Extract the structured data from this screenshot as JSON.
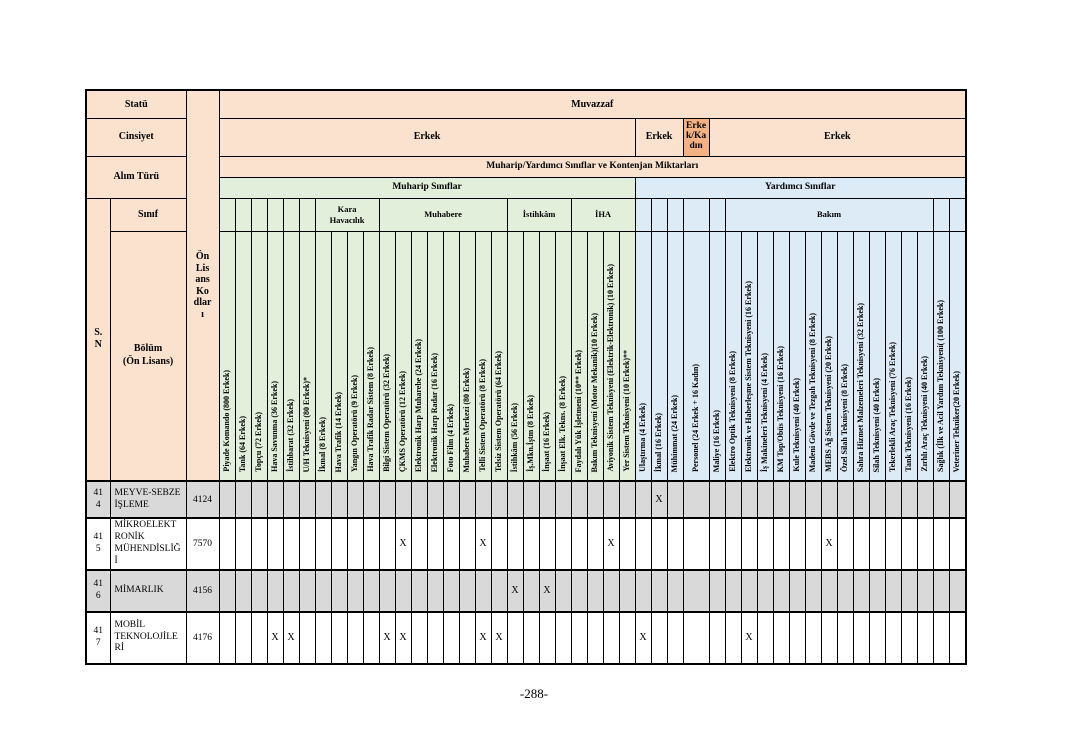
{
  "page": {
    "number_label": "-288-"
  },
  "table": {
    "colors": {
      "header_peach": "#fbe2ce",
      "header_dark_orange": "#f4b183",
      "muharip_green": "#e2efda",
      "yardimci_blue": "#ddebf7",
      "shaded_row_gray": "#d9d9d9"
    },
    "x_mark": "X",
    "left_headers": {
      "statu": "Statü",
      "cinsiyet": "Cinsiyet",
      "alim_turu": "Alım Türü",
      "sinif": "Sınıf",
      "sn": "S. N",
      "bolum": "Bölüm\n(Ön Lisans)",
      "on_lisans": "Ön Lisans Kodları"
    },
    "top": {
      "muvazzaf": "Muvazzaf",
      "cinsiyet_cells": [
        {
          "label": "Erkek",
          "span": 26
        },
        {
          "label": "Erkek",
          "span": 3
        },
        {
          "label": "Erkek/Kadın",
          "span": 1,
          "variant": "dark"
        },
        {
          "label": "Erkek",
          "span": 16
        }
      ],
      "kontenjan": "Muharip/Yardımcı Sınıflar ve Kontenjan Miktarları",
      "muharip": "Muharip Sınıflar",
      "yardimci": "Yardımcı Sınıflar"
    },
    "groups": [
      {
        "label": "",
        "span": 6,
        "section": "muharip"
      },
      {
        "label": "Kara\nHavacılık",
        "span": 4,
        "section": "muharip"
      },
      {
        "label": "Muhabere",
        "span": 8,
        "section": "muharip"
      },
      {
        "label": "İstihkâm",
        "span": 4,
        "section": "muharip"
      },
      {
        "label": "İHA",
        "span": 4,
        "section": "muharip"
      },
      {
        "label": "",
        "span": 5,
        "section": "yardimci"
      },
      {
        "label": "Bakım",
        "span": 13,
        "section": "yardimci"
      },
      {
        "label": "",
        "span": 2,
        "section": "yardimci"
      }
    ],
    "columns": [
      {
        "label": "Piyade Komando (800 Erkek)",
        "section": "muharip"
      },
      {
        "label": "Tank (64 Erkek)",
        "section": "muharip"
      },
      {
        "label": "Topçu (72 Erkek)",
        "section": "muharip"
      },
      {
        "label": "Hava Savunma (36 Erkek)",
        "section": "muharip"
      },
      {
        "label": "İstihbarat (32 Erkek)",
        "section": "muharip"
      },
      {
        "label": "U/H Teknisyeni (80 Erkek)*",
        "section": "muharip"
      },
      {
        "label": "İkmal (8 Erkek)",
        "section": "muharip"
      },
      {
        "label": "Hava Trafik (14 Erkek)",
        "section": "muharip"
      },
      {
        "label": "Yangın Operatörü (9 Erkek)",
        "section": "muharip"
      },
      {
        "label": "Hava Trafik Radar Sistem (8 Erkek)",
        "section": "muharip"
      },
      {
        "label": "Bilgi Sistem Operatörü (32 Erkek)",
        "section": "muharip"
      },
      {
        "label": "ÇKMS Operatörü (12 Erkek)",
        "section": "muharip"
      },
      {
        "label": "Elektronik Harp Muharebe (24 Erkek)",
        "section": "muharip"
      },
      {
        "label": "Elektronik Harp Radar (16 Erkek)",
        "section": "muharip"
      },
      {
        "label": "Foto Film (4 Erkek)",
        "section": "muharip"
      },
      {
        "label": "Muhabere Merkezi (80 Erkek)",
        "section": "muharip"
      },
      {
        "label": "Telli Sistem Operatörü (8 Erkek)",
        "section": "muharip"
      },
      {
        "label": "Telsiz Sistem Operatörü (64 Erkek)",
        "section": "muharip"
      },
      {
        "label": "İstihkâm (56 Erkek)",
        "section": "muharip"
      },
      {
        "label": "İş.Mkn.İştm (8 Erkek)",
        "section": "muharip"
      },
      {
        "label": "İnşaat (16 Erkek)",
        "section": "muharip"
      },
      {
        "label": "İnşaat Elk. Tekns. (8 Erkek)",
        "section": "muharip"
      },
      {
        "label": "Faydalı Yük İşletmeni (10** Erkek)",
        "section": "muharip"
      },
      {
        "label": "Bakım Teknisyeni (Motor Mekanik)(10 Erkek)",
        "section": "muharip"
      },
      {
        "label": "Aviyonik Sistem Teknisyeni (Elektrik-Elektronik) (10 Erkek)",
        "section": "muharip"
      },
      {
        "label": "Yer Sistem Teknisyeni (10 Erkek)**",
        "section": "muharip"
      },
      {
        "label": "Ulaştırma (4 Erkek)",
        "section": "yardimci"
      },
      {
        "label": "İkmal (16 Erkek)",
        "section": "yardimci"
      },
      {
        "label": "Mühimmat (24 Erkek)",
        "section": "yardimci"
      },
      {
        "label": "Personel (24 Erkek + 16 Kadın)",
        "section": "yardimci"
      },
      {
        "label": "Maliye (16 Erkek)",
        "section": "yardimci"
      },
      {
        "label": "Elektro Optik Teknisyeni (8 Erkek)",
        "section": "yardimci"
      },
      {
        "label": "Elektronik ve Haberleşme Sistem Teknisyeni (16 Erkek)",
        "section": "yardimci"
      },
      {
        "label": "İş Makineleri Teknisyeni (4 Erkek)",
        "section": "yardimci"
      },
      {
        "label": "KM Top/Obüs Teknisyeni (16 Erkek)",
        "section": "yardimci"
      },
      {
        "label": "Kule Teknisyeni (40 Erkek)",
        "section": "yardimci"
      },
      {
        "label": "Madeni Gövde ve Tezgah Teknisyeni (8 Erkek)",
        "section": "yardimci"
      },
      {
        "label": "MEBS Ağ Sistem Teknisyeni (20 Erkek)",
        "section": "yardimci"
      },
      {
        "label": "Özel Silah Teknisyeni (8 Erkek)",
        "section": "yardimci"
      },
      {
        "label": "Sahra Hizmet Malzemeleri Teknisyeni (32 Erkek)",
        "section": "yardimci"
      },
      {
        "label": "Silah Teknisyeni (40 Erkek)",
        "section": "yardimci"
      },
      {
        "label": "Tekerlekli Araç Teknisyeni (76 Erkek)",
        "section": "yardimci"
      },
      {
        "label": "Tank Teknisyeni (16 Erkek)",
        "section": "yardimci"
      },
      {
        "label": "Zırhlı Araç Teknisyeni (40 Erkek)",
        "section": "yardimci"
      },
      {
        "label": "Sağlık (İlk ve Acil Yardım Teknisyeni( (100 Erkek)",
        "section": "yardimci"
      },
      {
        "label": "Veteriner Tekniker(20 Erkek)",
        "section": "yardimci"
      }
    ],
    "rows": [
      {
        "sn": "414",
        "bolum": "MEYVE-SEBZE İŞLEME",
        "kod": "4124",
        "shaded": true,
        "x_cols": [
          28
        ]
      },
      {
        "sn": "415",
        "bolum": "MİKROELEKTRONİK MÜHENDİSLİĞİ",
        "kod": "7570",
        "shaded": false,
        "x_cols": [
          12,
          17,
          25,
          38
        ]
      },
      {
        "sn": "416",
        "bolum": "MİMARLIK",
        "kod": "4156",
        "shaded": true,
        "x_cols": [
          19,
          21
        ]
      },
      {
        "sn": "417",
        "bolum": "MOBİL TEKNOLOJİLERİ",
        "kod": "4176",
        "shaded": false,
        "x_cols": [
          4,
          5,
          11,
          12,
          17,
          18,
          27,
          33
        ]
      }
    ]
  }
}
